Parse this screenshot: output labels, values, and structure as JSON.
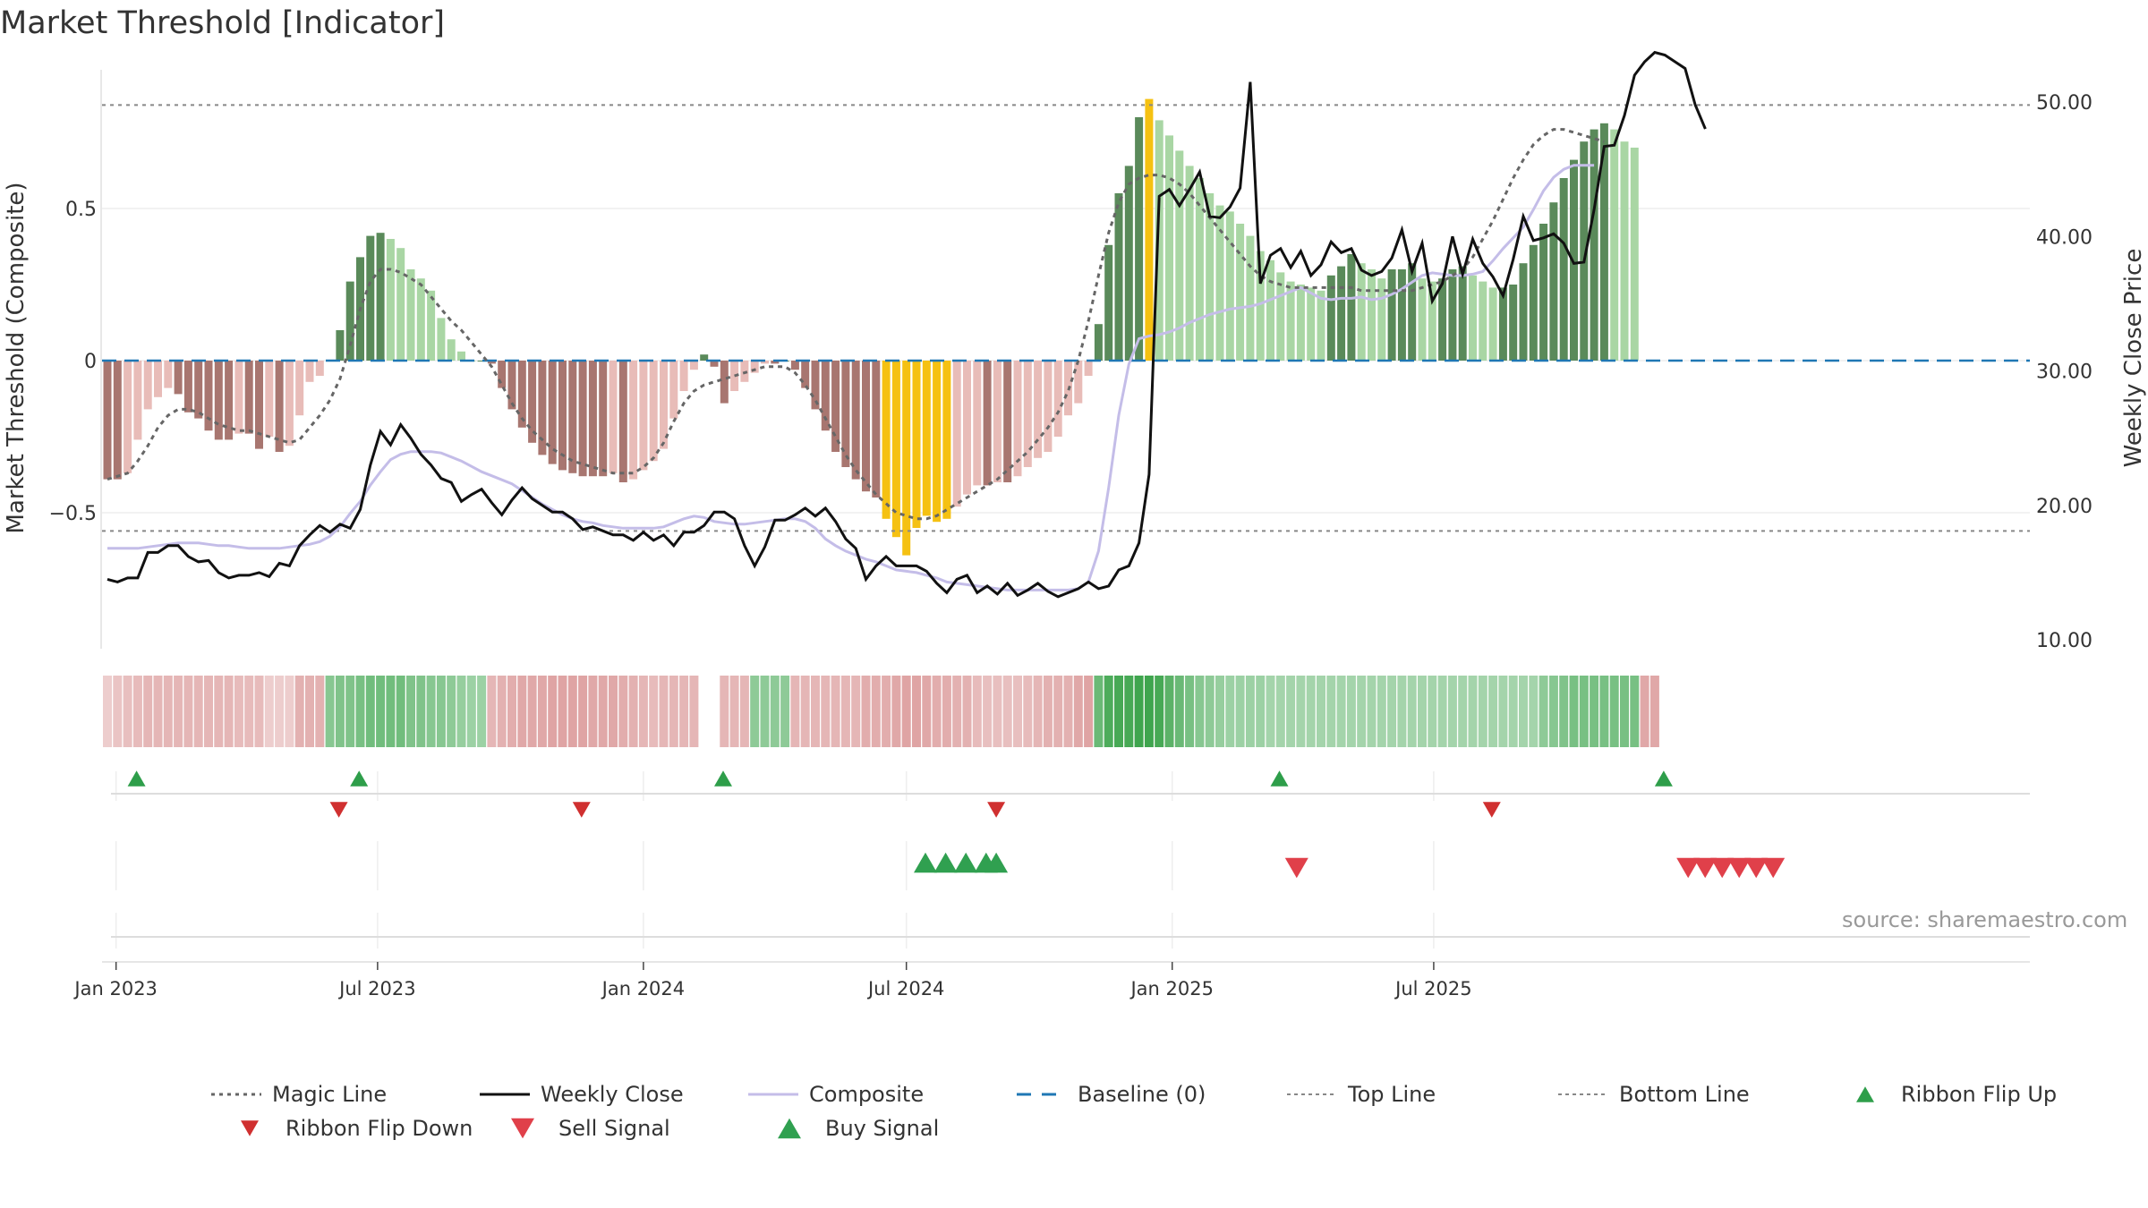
{
  "title": "Market Threshold [Indicator]",
  "source": "source: sharemaestro.com",
  "colors": {
    "pos_dark": "#5a8a5a",
    "pos_light": "#a9d6a4",
    "neg_dark": "#a87670",
    "neg_light": "#e8bcb8",
    "extreme": "#f5c112",
    "close": "#111111",
    "composite": "#c4bde8",
    "magic": "#666666",
    "baseline": "#1f77b4",
    "threshold": "#888888",
    "flip_up": "#2e9e4a",
    "flip_down": "#d03030",
    "sell": "#e0404a",
    "buy": "#30a050"
  },
  "chart_data": {
    "type": "bar",
    "title": "Market Threshold [Indicator]",
    "ylabel_left": "Market Threshold (Composite)",
    "ylabel_right": "Weekly Close Price",
    "y_left_ticks": [
      "0.5",
      "0",
      "−0.5"
    ],
    "y_right_ticks": [
      "50.00",
      "40.00",
      "30.00",
      "20.00",
      "10.00"
    ],
    "y_right_range": [
      10,
      54
    ],
    "top_line": 0.84,
    "bottom_line": -0.56,
    "x_start": "2022-12-26",
    "x_ticks": [
      {
        "date": "2023-01-01",
        "label": "Jan 2023"
      },
      {
        "date": "2023-07-01",
        "label": "Jul 2023"
      },
      {
        "date": "2024-01-01",
        "label": "Jan 2024"
      },
      {
        "date": "2024-07-01",
        "label": "Jul 2024"
      },
      {
        "date": "2025-01-01",
        "label": "Jan 2025"
      },
      {
        "date": "2025-07-01",
        "label": "Jul 2025"
      }
    ],
    "series": [
      {
        "name": "Composite (bars)",
        "values": [
          -0.39,
          -0.39,
          -0.37,
          -0.26,
          -0.16,
          -0.12,
          -0.09,
          -0.11,
          -0.17,
          -0.19,
          -0.23,
          -0.26,
          -0.26,
          -0.24,
          -0.24,
          -0.29,
          -0.25,
          -0.3,
          -0.28,
          -0.18,
          -0.07,
          -0.05,
          0,
          0.1,
          0.26,
          0.34,
          0.41,
          0.42,
          0.4,
          0.37,
          0.3,
          0.27,
          0.23,
          0.14,
          0.07,
          0.03,
          0,
          0,
          -0.01,
          -0.09,
          -0.16,
          -0.22,
          -0.27,
          -0.31,
          -0.34,
          -0.36,
          -0.37,
          -0.38,
          -0.38,
          -0.38,
          -0.37,
          -0.4,
          -0.39,
          -0.36,
          -0.33,
          -0.29,
          -0.19,
          -0.1,
          -0.03,
          0.02,
          -0.02,
          -0.14,
          -0.1,
          -0.07,
          -0.04,
          -0.01,
          -0.01,
          0,
          -0.03,
          -0.09,
          -0.16,
          -0.23,
          -0.3,
          -0.35,
          -0.39,
          -0.43,
          -0.45,
          -0.52,
          -0.58,
          -0.64,
          -0.55,
          -0.51,
          -0.53,
          -0.52,
          -0.48,
          -0.44,
          -0.41,
          -0.41,
          -0.4,
          -0.4,
          -0.38,
          -0.35,
          -0.32,
          -0.3,
          -0.25,
          -0.18,
          -0.14,
          -0.05,
          0.12,
          0.38,
          0.55,
          0.64,
          0.8,
          0.86,
          0.79,
          0.74,
          0.69,
          0.64,
          0.6,
          0.55,
          0.51,
          0.49,
          0.45,
          0.41,
          0.36,
          0.33,
          0.29,
          0.26,
          0.25,
          0.24,
          0.23,
          0.28,
          0.31,
          0.35,
          0.32,
          0.3,
          0.27,
          0.3,
          0.3,
          0.32,
          0.27,
          0.26,
          0.27,
          0.3,
          0.31,
          0.28,
          0.26,
          0.24,
          0.24,
          0.25,
          0.32,
          0.38,
          0.45,
          0.52,
          0.6,
          0.66,
          0.72,
          0.76,
          0.78,
          0.76,
          0.72,
          0.7
        ]
      },
      {
        "name": "Magic Line",
        "values": [
          -0.39,
          -0.38,
          -0.37,
          -0.33,
          -0.28,
          -0.22,
          -0.18,
          -0.16,
          -0.16,
          -0.17,
          -0.19,
          -0.21,
          -0.22,
          -0.23,
          -0.23,
          -0.24,
          -0.25,
          -0.26,
          -0.27,
          -0.26,
          -0.22,
          -0.18,
          -0.13,
          -0.06,
          0.05,
          0.17,
          0.26,
          0.3,
          0.3,
          0.29,
          0.27,
          0.25,
          0.21,
          0.17,
          0.13,
          0.1,
          0.06,
          0.02,
          -0.02,
          -0.08,
          -0.14,
          -0.19,
          -0.23,
          -0.26,
          -0.29,
          -0.31,
          -0.33,
          -0.34,
          -0.35,
          -0.36,
          -0.37,
          -0.37,
          -0.37,
          -0.35,
          -0.32,
          -0.27,
          -0.2,
          -0.14,
          -0.1,
          -0.08,
          -0.07,
          -0.06,
          -0.05,
          -0.04,
          -0.03,
          -0.02,
          -0.02,
          -0.02,
          -0.04,
          -0.08,
          -0.13,
          -0.19,
          -0.25,
          -0.31,
          -0.36,
          -0.4,
          -0.44,
          -0.47,
          -0.5,
          -0.51,
          -0.52,
          -0.52,
          -0.51,
          -0.49,
          -0.47,
          -0.45,
          -0.43,
          -0.41,
          -0.39,
          -0.36,
          -0.33,
          -0.3,
          -0.26,
          -0.22,
          -0.17,
          -0.1,
          0,
          0.13,
          0.28,
          0.42,
          0.52,
          0.58,
          0.6,
          0.61,
          0.61,
          0.6,
          0.58,
          0.55,
          0.51,
          0.47,
          0.43,
          0.39,
          0.35,
          0.31,
          0.28,
          0.26,
          0.25,
          0.24,
          0.24,
          0.24,
          0.24,
          0.24,
          0.24,
          0.24,
          0.23,
          0.23,
          0.23,
          0.23,
          0.23,
          0.23,
          0.24,
          0.25,
          0.26,
          0.28,
          0.3,
          0.34,
          0.4,
          0.46,
          0.53,
          0.6,
          0.66,
          0.71,
          0.74,
          0.76,
          0.76,
          0.75,
          0.74,
          0.73,
          0.72
        ]
      },
      {
        "name": "Weekly Close",
        "values": [
          14.5,
          14.3,
          14.6,
          14.6,
          16.5,
          16.5,
          17,
          17,
          16.2,
          15.8,
          15.9,
          15,
          14.6,
          14.8,
          14.8,
          15,
          14.7,
          15.7,
          15.5,
          17,
          17.8,
          18.5,
          18,
          18.6,
          18.3,
          19.7,
          23,
          25.5,
          24.5,
          26,
          25,
          23.8,
          23,
          22,
          21.7,
          20.3,
          20.8,
          21.2,
          20.2,
          19.3,
          20.4,
          21.3,
          20.5,
          20,
          19.5,
          19.5,
          19,
          18.2,
          18.4,
          18.1,
          17.8,
          17.8,
          17.4,
          18,
          17.4,
          17.8,
          17,
          18,
          18,
          18.5,
          19.5,
          19.5,
          19,
          17,
          15.5,
          16.9,
          18.9,
          18.9,
          19.3,
          19.8,
          19.2,
          19.8,
          18.8,
          17.5,
          16.8,
          14.5,
          15.5,
          16.2,
          15.5,
          15.5,
          15.5,
          15.1,
          14.2,
          13.5,
          14.5,
          14.8,
          13.5,
          14,
          13.4,
          14.2,
          13.3,
          13.7,
          14.2,
          13.6,
          13.2,
          13.5,
          13.8,
          14.3,
          13.8,
          14,
          15.2,
          15.5,
          17.2,
          22.3,
          43,
          43.5,
          42.3,
          43.5,
          44.8,
          41.5,
          41.4,
          42.2,
          43.6,
          51.5,
          36.5,
          38.6,
          39.1,
          37.7,
          38.9,
          37.1,
          37.9,
          39.6,
          38.8,
          39.1,
          37.5,
          37.1,
          37.4,
          38.4,
          40.5,
          37.4,
          39.5,
          35.2,
          36.5,
          40,
          37.2,
          39.8,
          38,
          37,
          35.6,
          38.3,
          41.5,
          39.7,
          39.9,
          40.2,
          39.5,
          38,
          38.1,
          42,
          46.7,
          46.8,
          49,
          52,
          53,
          53.7,
          53.5,
          53,
          52.5,
          49.8,
          48
        ]
      },
      {
        "name": "Composite",
        "values": [
          16.8,
          16.8,
          16.8,
          16.8,
          16.9,
          17,
          17.1,
          17.2,
          17.2,
          17.2,
          17.1,
          17,
          17,
          16.9,
          16.8,
          16.8,
          16.8,
          16.8,
          16.9,
          17,
          17.1,
          17.3,
          17.7,
          18.4,
          19.4,
          20.3,
          21.5,
          22.5,
          23.4,
          23.8,
          24,
          24,
          24,
          23.9,
          23.6,
          23.3,
          22.9,
          22.5,
          22.2,
          21.9,
          21.6,
          21.1,
          20.6,
          20.1,
          19.7,
          19.3,
          19,
          18.8,
          18.7,
          18.5,
          18.4,
          18.3,
          18.3,
          18.3,
          18.3,
          18.4,
          18.7,
          19,
          19.2,
          19.1,
          18.8,
          18.7,
          18.6,
          18.6,
          18.7,
          18.8,
          18.9,
          19,
          19,
          18.8,
          18.3,
          17.5,
          17,
          16.6,
          16.3,
          16,
          15.8,
          15.5,
          15.2,
          15.1,
          15,
          14.8,
          14.6,
          14.3,
          14.2,
          14.1,
          14,
          13.9,
          13.8,
          13.7,
          13.7,
          13.7,
          13.7,
          13.7,
          13.7,
          13.7,
          13.8,
          14.3,
          16.6,
          21.3,
          26.7,
          30.5,
          32.4,
          32.6,
          32.7,
          32.9,
          33.2,
          33.6,
          33.9,
          34.2,
          34.4,
          34.6,
          34.7,
          34.8,
          35,
          35.3,
          35.6,
          35.9,
          36.2,
          35.8,
          35.4,
          35.3,
          35.4,
          35.4,
          35.5,
          35.3,
          35.4,
          35.7,
          36.1,
          36.6,
          37.1,
          37.3,
          37.2,
          37.1,
          37.1,
          37.2,
          37.4,
          38.2,
          39.1,
          39.9,
          40.7,
          42,
          43.4,
          44.4,
          45,
          45.3,
          45.3,
          45.3
        ]
      }
    ],
    "ribbon_strength": [
      0.2,
      0.3,
      0.35,
      0.4,
      0.45,
      0.45,
      0.45,
      0.45,
      0.45,
      0.45,
      0.45,
      0.45,
      0.45,
      0.4,
      0.4,
      0.4,
      0.2,
      0.2,
      0.2,
      0.5,
      0.5,
      0.5,
      0.5,
      0.55,
      0.55,
      0.6,
      0.65,
      0.65,
      0.65,
      0.65,
      0.55,
      0.55,
      0.5,
      0.5,
      0.45,
      0.4,
      0.35,
      0.35,
      0.45,
      0.5,
      0.55,
      0.6,
      0.6,
      0.6,
      0.65,
      0.65,
      0.65,
      0.65,
      0.6,
      0.6,
      0.6,
      0.55,
      0.5,
      0.45,
      0.4,
      0.45,
      0.45,
      0.45,
      0.45,
      0,
      0,
      0.45,
      0.45,
      0.45,
      0.45,
      0.45,
      0.45,
      0.45,
      0.45,
      0.45,
      0.45,
      0.45,
      0.45,
      0.45,
      0.45,
      0.55,
      0.55,
      0.55,
      0.6,
      0.65,
      0.65,
      0.6,
      0.55,
      0.55,
      0.5,
      0.5,
      0.4,
      0.35,
      0.35,
      0.35,
      0.35,
      0.4,
      0.45,
      0.5,
      0.5,
      0.5,
      0.6,
      0.65,
      0.7,
      0.9,
      0.95,
      0.95,
      1,
      1,
      0.95,
      0.8,
      0.7,
      0.6,
      0.5,
      0.45,
      0.4,
      0.35,
      0.35,
      0.35,
      0.35,
      0.3,
      0.3,
      0.3,
      0.3,
      0.3,
      0.3,
      0.3,
      0.3,
      0.3,
      0.3,
      0.3,
      0.3,
      0.3,
      0.3,
      0.3,
      0.3,
      0.3,
      0.3,
      0.3,
      0.3,
      0.3,
      0.3,
      0.3,
      0.3,
      0.3,
      0.3,
      0.3,
      0.45,
      0.5,
      0.55,
      0.6,
      0.6,
      0.6,
      0.6,
      0.6,
      0.6,
      0.6,
      0.6,
      0.6
    ],
    "ribbon_flip_up_weeks": [
      2,
      24,
      60,
      115,
      153
    ],
    "ribbon_flip_down_weeks": [
      22,
      46,
      87,
      136
    ],
    "buy_signal_weeks": [
      80,
      82,
      84,
      86,
      87
    ],
    "sell_signal_weeks": [
      116,
      174,
      176,
      178,
      180,
      182,
      184
    ]
  },
  "legend": [
    {
      "label": "Magic Line",
      "symbol": "dotted",
      "color": "#666666"
    },
    {
      "label": "Weekly Close",
      "symbol": "solid",
      "color": "#111111"
    },
    {
      "label": "Composite",
      "symbol": "solid",
      "color": "#c4bde8"
    },
    {
      "label": "Baseline (0)",
      "symbol": "dashed",
      "color": "#1f77b4"
    },
    {
      "label": "Top Line",
      "symbol": "dotted-thin",
      "color": "#888888"
    },
    {
      "label": "Bottom Line",
      "symbol": "dotted-thin",
      "color": "#888888"
    },
    {
      "label": "Ribbon Flip Up",
      "symbol": "tri-up",
      "color": "#2e9e4a"
    },
    {
      "label": "Ribbon Flip Down",
      "symbol": "tri-down",
      "color": "#d03030"
    },
    {
      "label": "Sell Signal",
      "symbol": "tri-down-big",
      "color": "#e0404a"
    },
    {
      "label": "Buy Signal",
      "symbol": "tri-up-big",
      "color": "#30a050"
    }
  ]
}
